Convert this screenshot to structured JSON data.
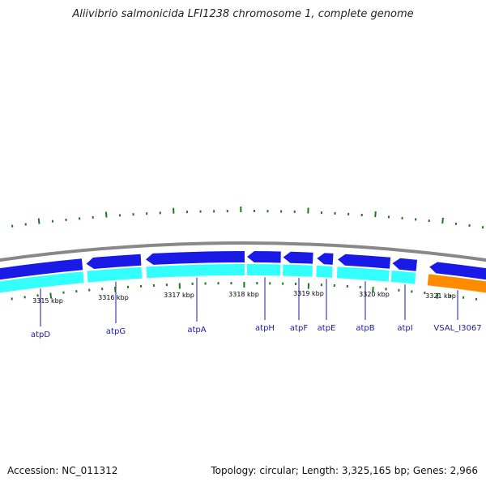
{
  "title": "Aliivibrio salmonicida LFI1238 chromosome 1, complete genome",
  "footer": {
    "accession": "Accession: NC_011312",
    "summary": "Topology: circular; Length: 3,325,165 bp; Genes: 2,966"
  },
  "colors": {
    "backbone": "#888888",
    "gene_forward": "#1a1ae6",
    "gene_cds": "#33ffff",
    "gene_other": "#ff8c00",
    "tick": "#1a7a1a",
    "label": "#1a1aa6",
    "kbp_label": "#000000"
  },
  "scale_labels": [
    "3315 kbp",
    "3316 kbp",
    "3317 kbp",
    "3318 kbp",
    "3319 kbp",
    "3320 kbp",
    "3321 kbp"
  ],
  "genes": [
    {
      "name": "atpD"
    },
    {
      "name": "atpG"
    },
    {
      "name": "atpA"
    },
    {
      "name": "atpH"
    },
    {
      "name": "atpF"
    },
    {
      "name": "atpE"
    },
    {
      "name": "atpB"
    },
    {
      "name": "atpI"
    },
    {
      "name": "VSAL_I3067"
    }
  ]
}
